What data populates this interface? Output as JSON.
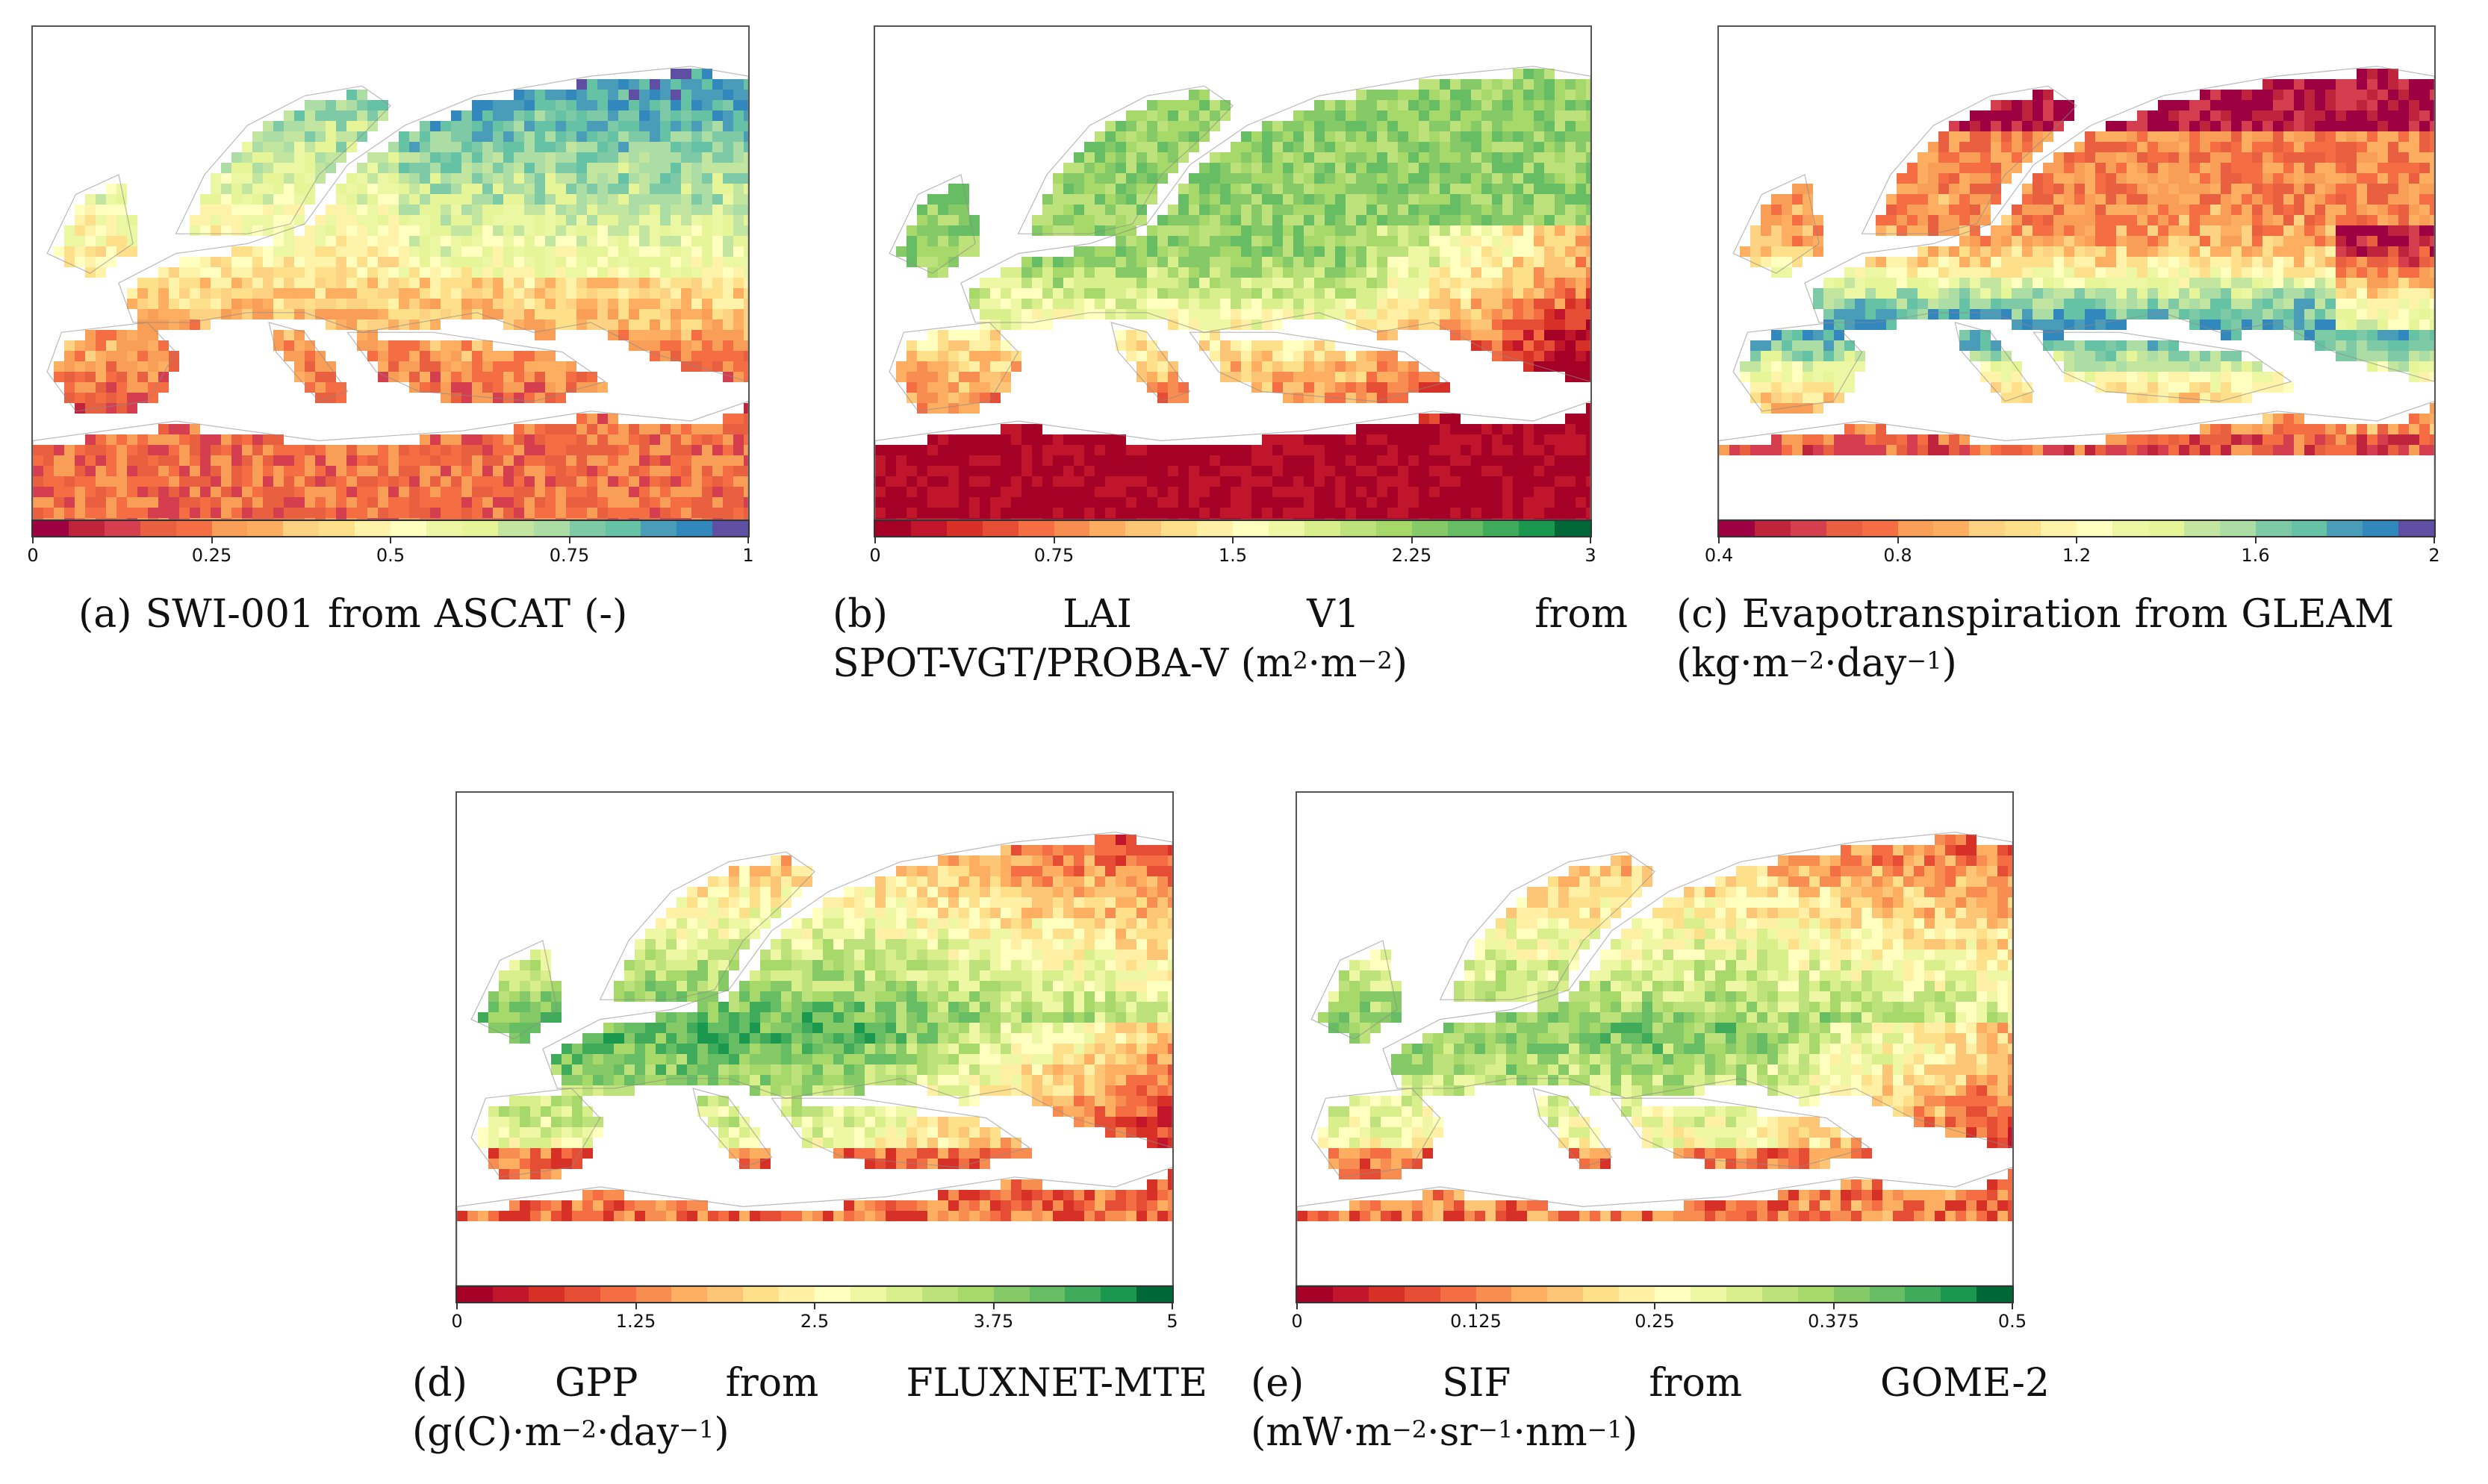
{
  "figure": {
    "panels": [
      {
        "id": "a",
        "caption_words": [
          "(a)",
          "SWI-001",
          "from",
          "ASCAT",
          "(-)"
        ],
        "caption_justify": false,
        "caption_line2": "",
        "colorbar": {
          "palette": "RdYlBu",
          "colors": [
            "#9e0142",
            "#c0243c",
            "#d53e4f",
            "#e8603f",
            "#f46d43",
            "#f99e56",
            "#fdae61",
            "#fed283",
            "#fee08b",
            "#fff3aa",
            "#ffffbf",
            "#ecf7a4",
            "#e6f598",
            "#c2e6a0",
            "#abdda4",
            "#7fcaa6",
            "#66c2a5",
            "#4a9db9",
            "#3288bd",
            "#5e4fa2"
          ],
          "tick_labels": [
            "0",
            "0.25",
            "0.5",
            "0.75",
            "1"
          ],
          "vmin": 0,
          "vmax": 1
        }
      },
      {
        "id": "b",
        "caption_words": [
          "(b)",
          "LAI",
          "V1",
          "from"
        ],
        "caption_justify": true,
        "caption_line2": "SPOT-VGT/PROBA-V (m",
        "caption_line2_parts": [
          "SPOT-VGT/PROBA-V (m",
          "2",
          "·m",
          "−2",
          ")"
        ],
        "colorbar": {
          "palette": "RdYlGn",
          "colors": [
            "#a50026",
            "#c0152a",
            "#d73027",
            "#e54e35",
            "#f46d43",
            "#f88d51",
            "#fdae61",
            "#fdc576",
            "#fee08b",
            "#fff0a6",
            "#ffffbf",
            "#eef7a3",
            "#d9ef8b",
            "#bde27b",
            "#a6d96a",
            "#85ca66",
            "#66bd63",
            "#3faa59",
            "#1a9850",
            "#006837"
          ],
          "tick_labels": [
            "0",
            "0.75",
            "1.5",
            "2.25",
            "3"
          ],
          "vmin": 0,
          "vmax": 3
        }
      },
      {
        "id": "c",
        "caption_words": [
          "(c)",
          "Evapotranspiration",
          "from",
          "GLEAM"
        ],
        "caption_justify": false,
        "caption_line2_parts": [
          "(kg·m",
          "−2",
          "·day",
          "−1",
          ")"
        ],
        "colorbar": {
          "palette": "Spectral",
          "colors": [
            "#9e0142",
            "#c0243c",
            "#d53e4f",
            "#e8603f",
            "#f46d43",
            "#f99e56",
            "#fdae61",
            "#fed283",
            "#fee08b",
            "#fff3aa",
            "#ffffbf",
            "#ecf7a4",
            "#e6f598",
            "#c2e6a0",
            "#abdda4",
            "#7fcaa6",
            "#66c2a5",
            "#4a9db9",
            "#3288bd",
            "#5e4fa2"
          ],
          "tick_labels": [
            "0.4",
            "0.8",
            "1.2",
            "1.6",
            "2"
          ],
          "vmin": 0.4,
          "vmax": 2
        }
      },
      {
        "id": "d",
        "caption_words": [
          "(d)",
          "GPP",
          "from",
          "FLUXNET-MTE"
        ],
        "caption_justify": true,
        "caption_line2_parts": [
          "(g(C)·m",
          "−2",
          "·day",
          "−1",
          ")"
        ],
        "colorbar": {
          "palette": "RdYlGn",
          "colors": [
            "#a50026",
            "#c0152a",
            "#d73027",
            "#e54e35",
            "#f46d43",
            "#f88d51",
            "#fdae61",
            "#fdc576",
            "#fee08b",
            "#fff0a6",
            "#ffffbf",
            "#eef7a3",
            "#d9ef8b",
            "#bde27b",
            "#a6d96a",
            "#85ca66",
            "#66bd63",
            "#3faa59",
            "#1a9850",
            "#006837"
          ],
          "tick_labels": [
            "0",
            "1.25",
            "2.5",
            "3.75",
            "5"
          ],
          "vmin": 0,
          "vmax": 5
        }
      },
      {
        "id": "e",
        "caption_words": [
          "(e)",
          "SIF",
          "from",
          "GOME-2"
        ],
        "caption_justify": true,
        "caption_line2_parts": [
          "(mW·m",
          "−2",
          "·sr",
          "−1",
          "·nm",
          "−1",
          ")"
        ],
        "colorbar": {
          "palette": "RdYlGn",
          "colors": [
            "#a50026",
            "#c0152a",
            "#d73027",
            "#e54e35",
            "#f46d43",
            "#f88d51",
            "#fdae61",
            "#fdc576",
            "#fee08b",
            "#fff0a6",
            "#ffffbf",
            "#eef7a3",
            "#d9ef8b",
            "#bde27b",
            "#a6d96a",
            "#85ca66",
            "#66bd63",
            "#3faa59",
            "#1a9850",
            "#006837"
          ],
          "tick_labels": [
            "0",
            "0.125",
            "0.25",
            "0.375",
            "0.5"
          ],
          "vmin": 0,
          "vmax": 0.5
        }
      }
    ]
  }
}
